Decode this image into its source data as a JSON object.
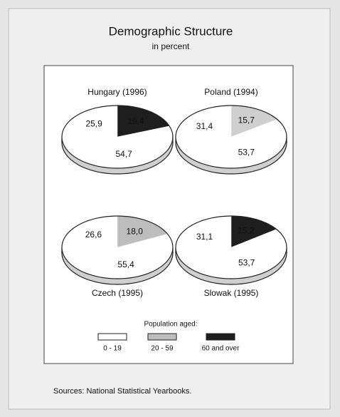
{
  "title": "Demographic Structure",
  "subtitle": "in percent",
  "legend": {
    "title": "Population aged:",
    "colors": [
      "#ffffff",
      "#bdbdbd",
      "#1e1e1e"
    ]
  },
  "source": "Sources: National Statistical Yearbooks.",
  "chart_data": [
    {
      "type": "pie",
      "title": "Hungary (1996)",
      "categories": [
        "0 - 19",
        "20 - 59",
        "60 and over"
      ],
      "values": [
        25.9,
        54.7,
        19.4
      ],
      "value_labels": [
        "25,9",
        "54,7",
        "19,4"
      ],
      "colors": [
        "#ffffff",
        "#ffffff",
        "#1e1e1e"
      ]
    },
    {
      "type": "pie",
      "title": "Poland (1994)",
      "categories": [
        "0 - 19",
        "20 - 59",
        "60 and over"
      ],
      "values": [
        31.4,
        53.7,
        15.7
      ],
      "value_labels": [
        "31,4",
        "53,7",
        "15,7"
      ],
      "colors": [
        "#ffffff",
        "#ffffff",
        "#cfcfcf"
      ]
    },
    {
      "type": "pie",
      "title": "Czech (1995)",
      "categories": [
        "0 - 19",
        "20 - 59",
        "60 and over"
      ],
      "values": [
        26.6,
        55.4,
        18.0
      ],
      "value_labels": [
        "26,6",
        "55,4",
        "18,0"
      ],
      "colors": [
        "#ffffff",
        "#ffffff",
        "#bdbdbd"
      ]
    },
    {
      "type": "pie",
      "title": "Slowak (1995)",
      "categories": [
        "0 - 19",
        "20 - 59",
        "60 and over"
      ],
      "values": [
        31.1,
        53.7,
        15.2
      ],
      "value_labels": [
        "31,1",
        "53,7",
        "15,2"
      ],
      "colors": [
        "#ffffff",
        "#ffffff",
        "#1e1e1e"
      ]
    }
  ]
}
